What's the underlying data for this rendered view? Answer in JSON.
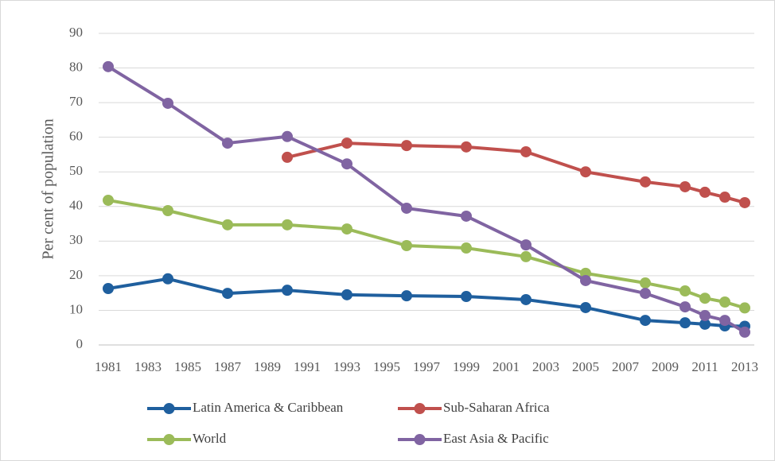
{
  "chart_data": {
    "type": "line",
    "y_label": "Per cent of population",
    "x": [
      1981,
      1984,
      1987,
      1990,
      1993,
      1996,
      1999,
      2002,
      2005,
      2008,
      2010,
      2011,
      2012,
      2013
    ],
    "xlim": [
      1981,
      2013
    ],
    "xticks": [
      1981,
      1983,
      1985,
      1987,
      1989,
      1991,
      1993,
      1995,
      1997,
      1999,
      2001,
      2003,
      2005,
      2007,
      2009,
      2011,
      2013
    ],
    "ylim": [
      0,
      90
    ],
    "yticks": [
      0,
      10,
      20,
      30,
      40,
      50,
      60,
      70,
      80,
      90
    ],
    "grid": true,
    "legend": "bottom",
    "series": [
      {
        "name": "Latin America & Caribbean",
        "color": "#1f5f9e",
        "values": [
          16.3,
          19.1,
          14.9,
          15.8,
          14.5,
          14.2,
          14.0,
          13.1,
          10.8,
          7.1,
          6.4,
          6.0,
          5.5,
          5.4
        ]
      },
      {
        "name": "Sub-Saharan Africa",
        "color": "#c0504d",
        "values": [
          null,
          null,
          null,
          54.2,
          58.3,
          57.6,
          57.2,
          55.8,
          50.0,
          47.1,
          45.7,
          44.1,
          42.7,
          41.1
        ]
      },
      {
        "name": "World",
        "color": "#9bbb59",
        "values": [
          41.8,
          38.8,
          34.7,
          34.7,
          33.5,
          28.7,
          28.0,
          25.5,
          20.7,
          17.9,
          15.6,
          13.5,
          12.4,
          10.7
        ]
      },
      {
        "name": "East Asia & Pacific",
        "color": "#8064a2",
        "values": [
          80.4,
          69.8,
          58.3,
          60.2,
          52.3,
          39.5,
          37.2,
          28.9,
          18.6,
          14.9,
          11.0,
          8.5,
          7.1,
          3.7
        ]
      }
    ]
  }
}
